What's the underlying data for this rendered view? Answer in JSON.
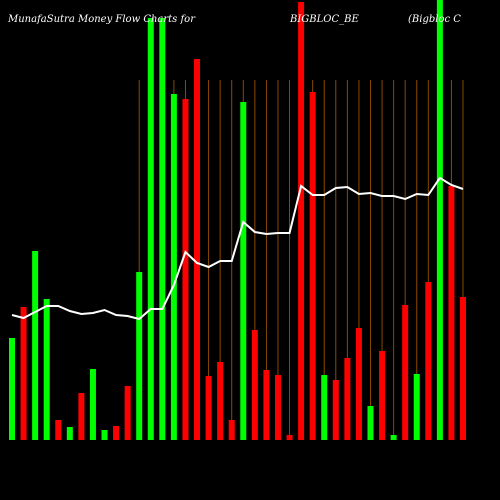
{
  "chart_data": {
    "type": "bar",
    "title": "MunafaSutra  Money  Flow  Charts for",
    "subtitle": "BIGBLOC_BE",
    "annotation": "(Bigbloc C",
    "values": [
      102,
      133,
      189,
      141,
      20,
      13,
      47,
      71,
      10,
      14,
      54,
      168,
      422,
      422,
      346,
      341,
      381,
      64,
      78,
      20,
      338,
      110,
      70,
      65,
      5,
      438,
      348,
      65,
      60,
      82,
      112,
      34,
      89,
      5,
      135,
      66,
      158,
      440,
      254,
      143
    ],
    "colors": [
      "#00ff00",
      "#ff0000",
      "#00ff00",
      "#00ff00",
      "#ff0000",
      "#00ff00",
      "#ff0000",
      "#00ff00",
      "#00ff00",
      "#ff0000",
      "#ff0000",
      "#00ff00",
      "#00ff00",
      "#00ff00",
      "#00ff00",
      "#ff0000",
      "#ff0000",
      "#ff0000",
      "#ff0000",
      "#ff0000",
      "#00ff00",
      "#ff0000",
      "#ff0000",
      "#ff0000",
      "#ff0000",
      "#ff0000",
      "#ff0000",
      "#00ff00",
      "#ff0000",
      "#ff0000",
      "#ff0000",
      "#00ff00",
      "#ff0000",
      "#00ff00",
      "#ff0000",
      "#00ff00",
      "#ff0000",
      "#00ff00",
      "#ff0000",
      "#ff0000"
    ],
    "line_values": [
      125,
      122,
      128,
      134,
      134,
      129,
      126,
      127,
      130,
      125,
      124,
      121,
      131,
      131,
      155,
      188,
      177,
      173,
      179,
      179,
      218,
      208,
      206,
      207,
      207,
      254,
      245,
      245,
      252,
      253,
      246,
      247,
      244,
      244,
      241,
      246,
      245,
      262,
      255,
      251
    ],
    "line_color": "#ffffff",
    "ylim": [
      0,
      440
    ]
  }
}
